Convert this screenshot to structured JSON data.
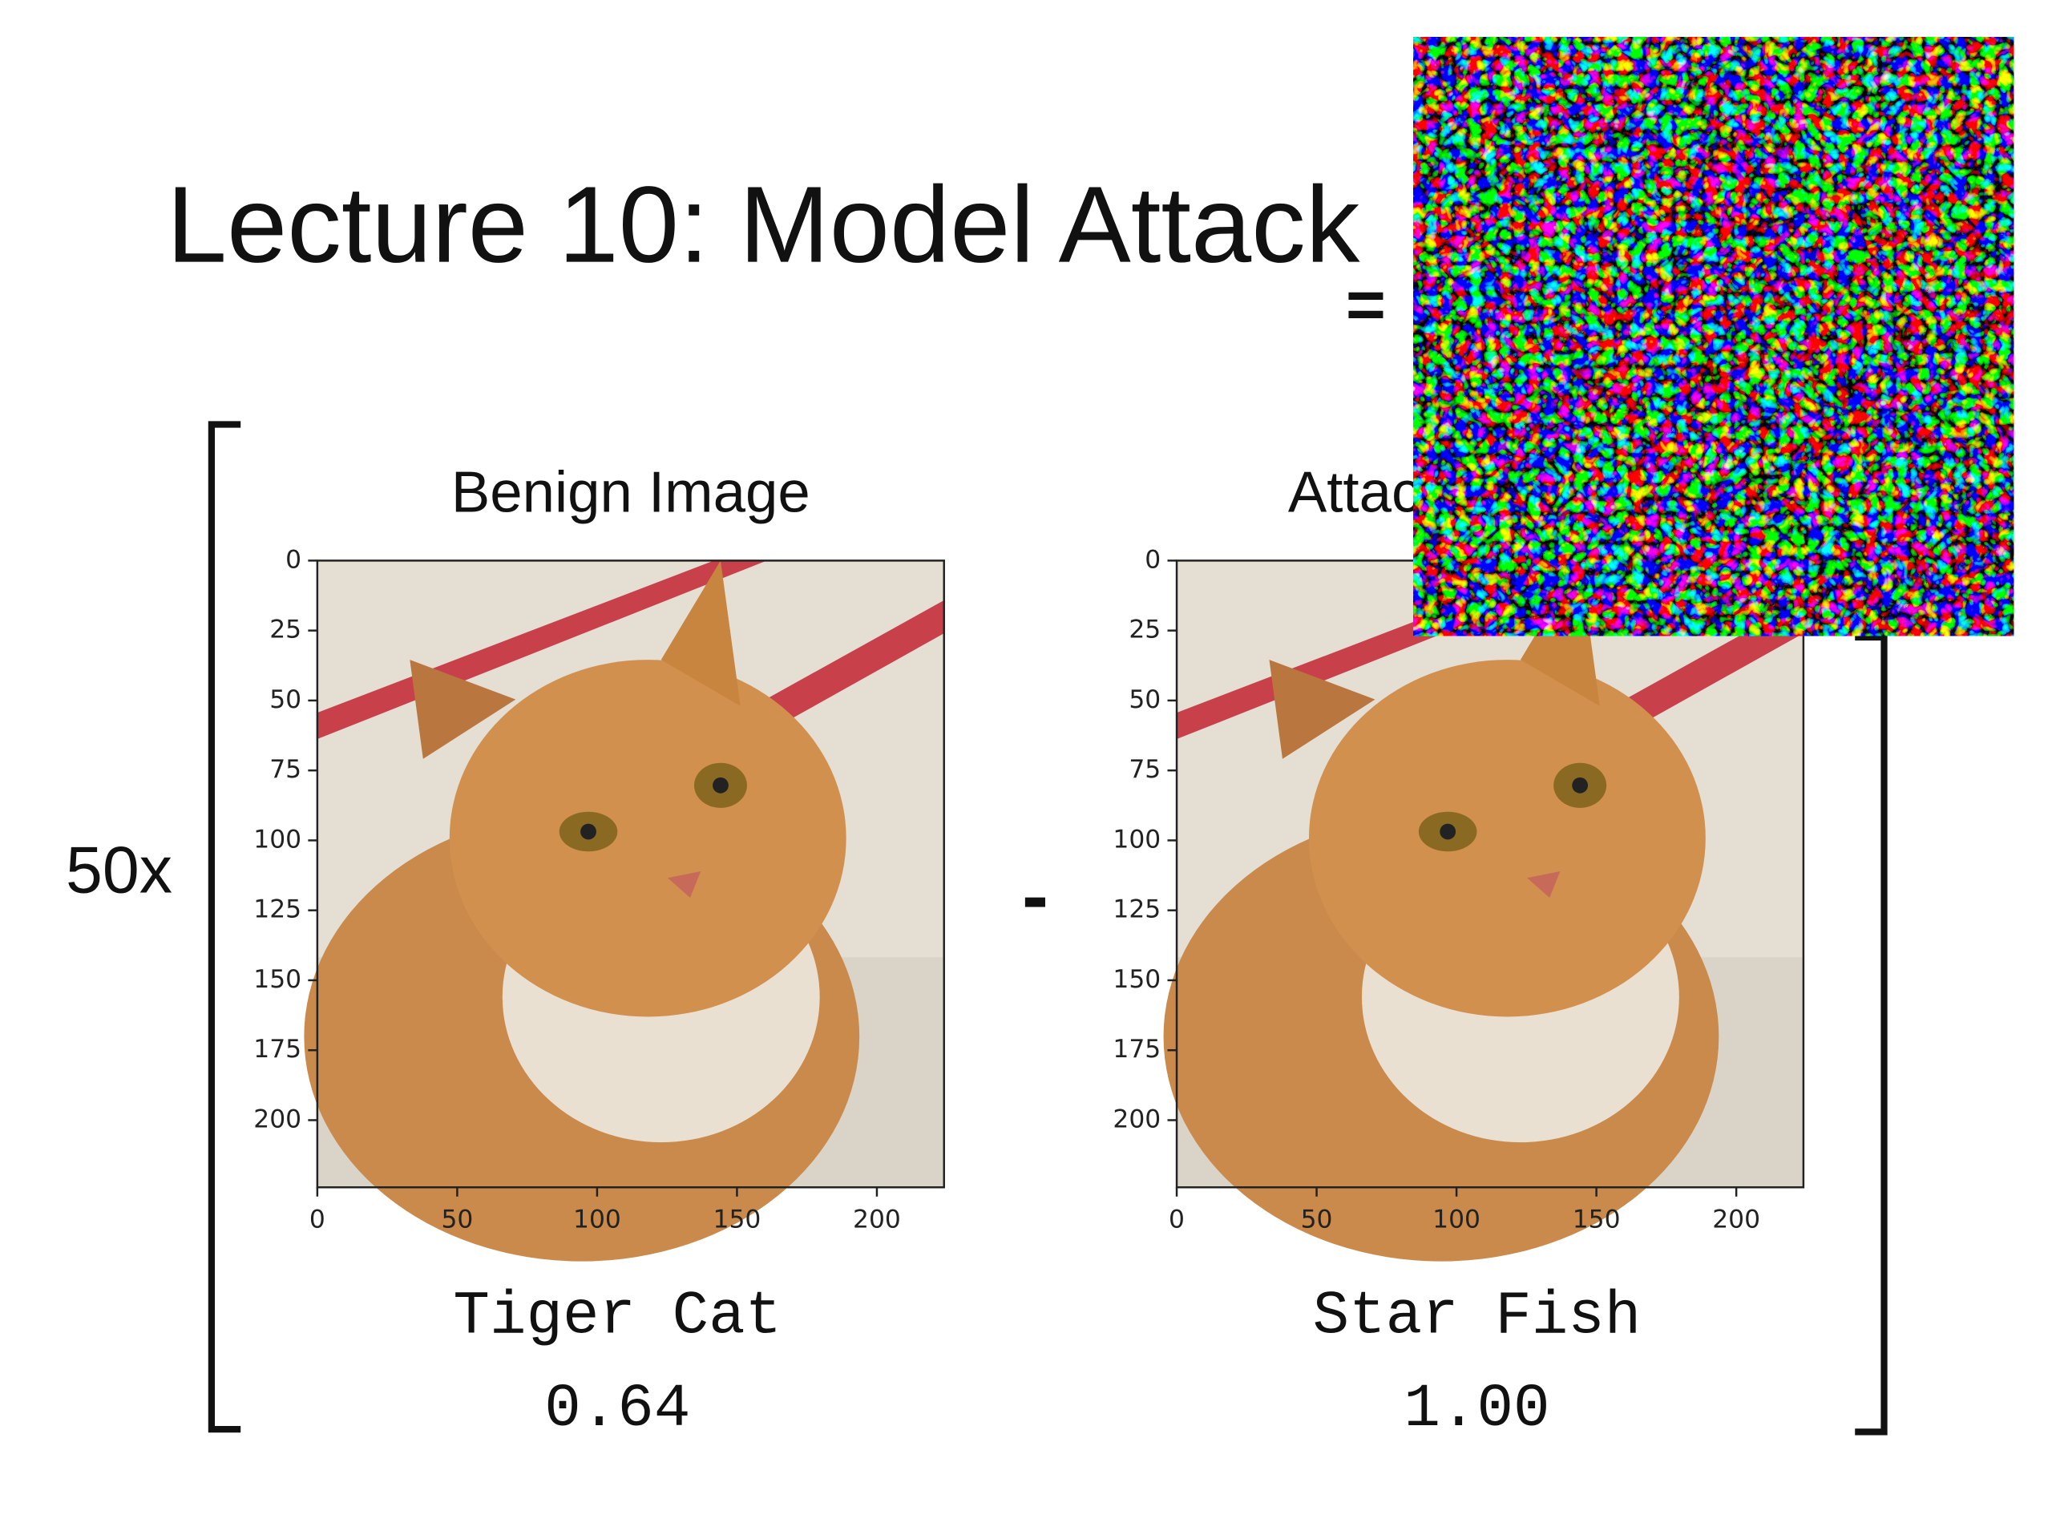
{
  "title": "Lecture 10: Model Attack",
  "multiplier": "50x",
  "minus": "-",
  "equals": "=",
  "panels": [
    {
      "title": "Benign Image",
      "xlim": [
        0,
        224
      ],
      "ylim": [
        0,
        224
      ],
      "xticks": [
        0,
        50,
        100,
        150,
        200
      ],
      "yticks": [
        0,
        25,
        50,
        75,
        100,
        125,
        150,
        175,
        200
      ],
      "prediction": "Tiger Cat",
      "confidence": "0.64"
    },
    {
      "title": "Attacked Image",
      "xlim": [
        0,
        224
      ],
      "ylim": [
        0,
        224
      ],
      "xticks": [
        0,
        50,
        100,
        150,
        200
      ],
      "yticks": [
        0,
        25,
        50,
        75,
        100,
        125,
        150,
        175,
        200
      ],
      "prediction": "Star Fish",
      "confidence": "1.00"
    }
  ]
}
